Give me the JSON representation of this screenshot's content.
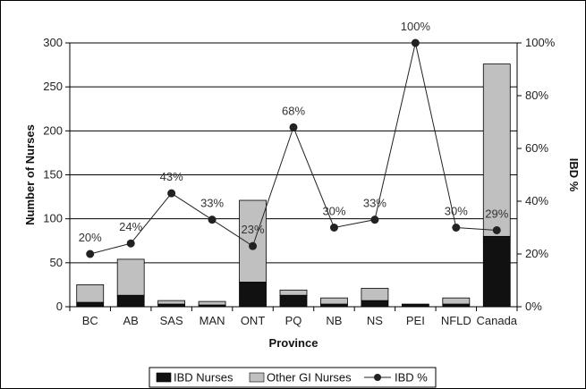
{
  "chart_data": {
    "type": "bar",
    "stacked": true,
    "xlabel": "Province",
    "ylabel": "Number of Nurses",
    "y2label": "IBD %",
    "categories": [
      "BC",
      "AB",
      "SAS",
      "MAN",
      "ONT",
      "PQ",
      "NB",
      "NS",
      "PEI",
      "NFLD",
      "Canada"
    ],
    "ylim": [
      0,
      300
    ],
    "yticks": [
      0,
      50,
      100,
      150,
      200,
      250,
      300
    ],
    "y2lim": [
      0,
      100
    ],
    "y2ticks": [
      "0%",
      "20%",
      "40%",
      "60%",
      "80%",
      "100%"
    ],
    "grid": true,
    "legend_position": "bottom",
    "series": [
      {
        "name": "IBD Nurses",
        "kind": "bar",
        "color": "#111111",
        "values": [
          5,
          13,
          3,
          2,
          28,
          13,
          3,
          7,
          3,
          3,
          80
        ]
      },
      {
        "name": "Other GI Nurses",
        "kind": "bar",
        "color": "#c0c0c0",
        "values": [
          20,
          41,
          4,
          4,
          93,
          6,
          7,
          14,
          0,
          7,
          196
        ]
      },
      {
        "name": "IBD %",
        "kind": "line",
        "axis": "right",
        "color": "#222222",
        "values": [
          20,
          24,
          43,
          33,
          23,
          68,
          30,
          33,
          100,
          30,
          29
        ],
        "labels": [
          "20%",
          "24%",
          "43%",
          "33%",
          "23%",
          "68%",
          "30%",
          "33%",
          "100%",
          "30%",
          "29%"
        ]
      }
    ]
  }
}
